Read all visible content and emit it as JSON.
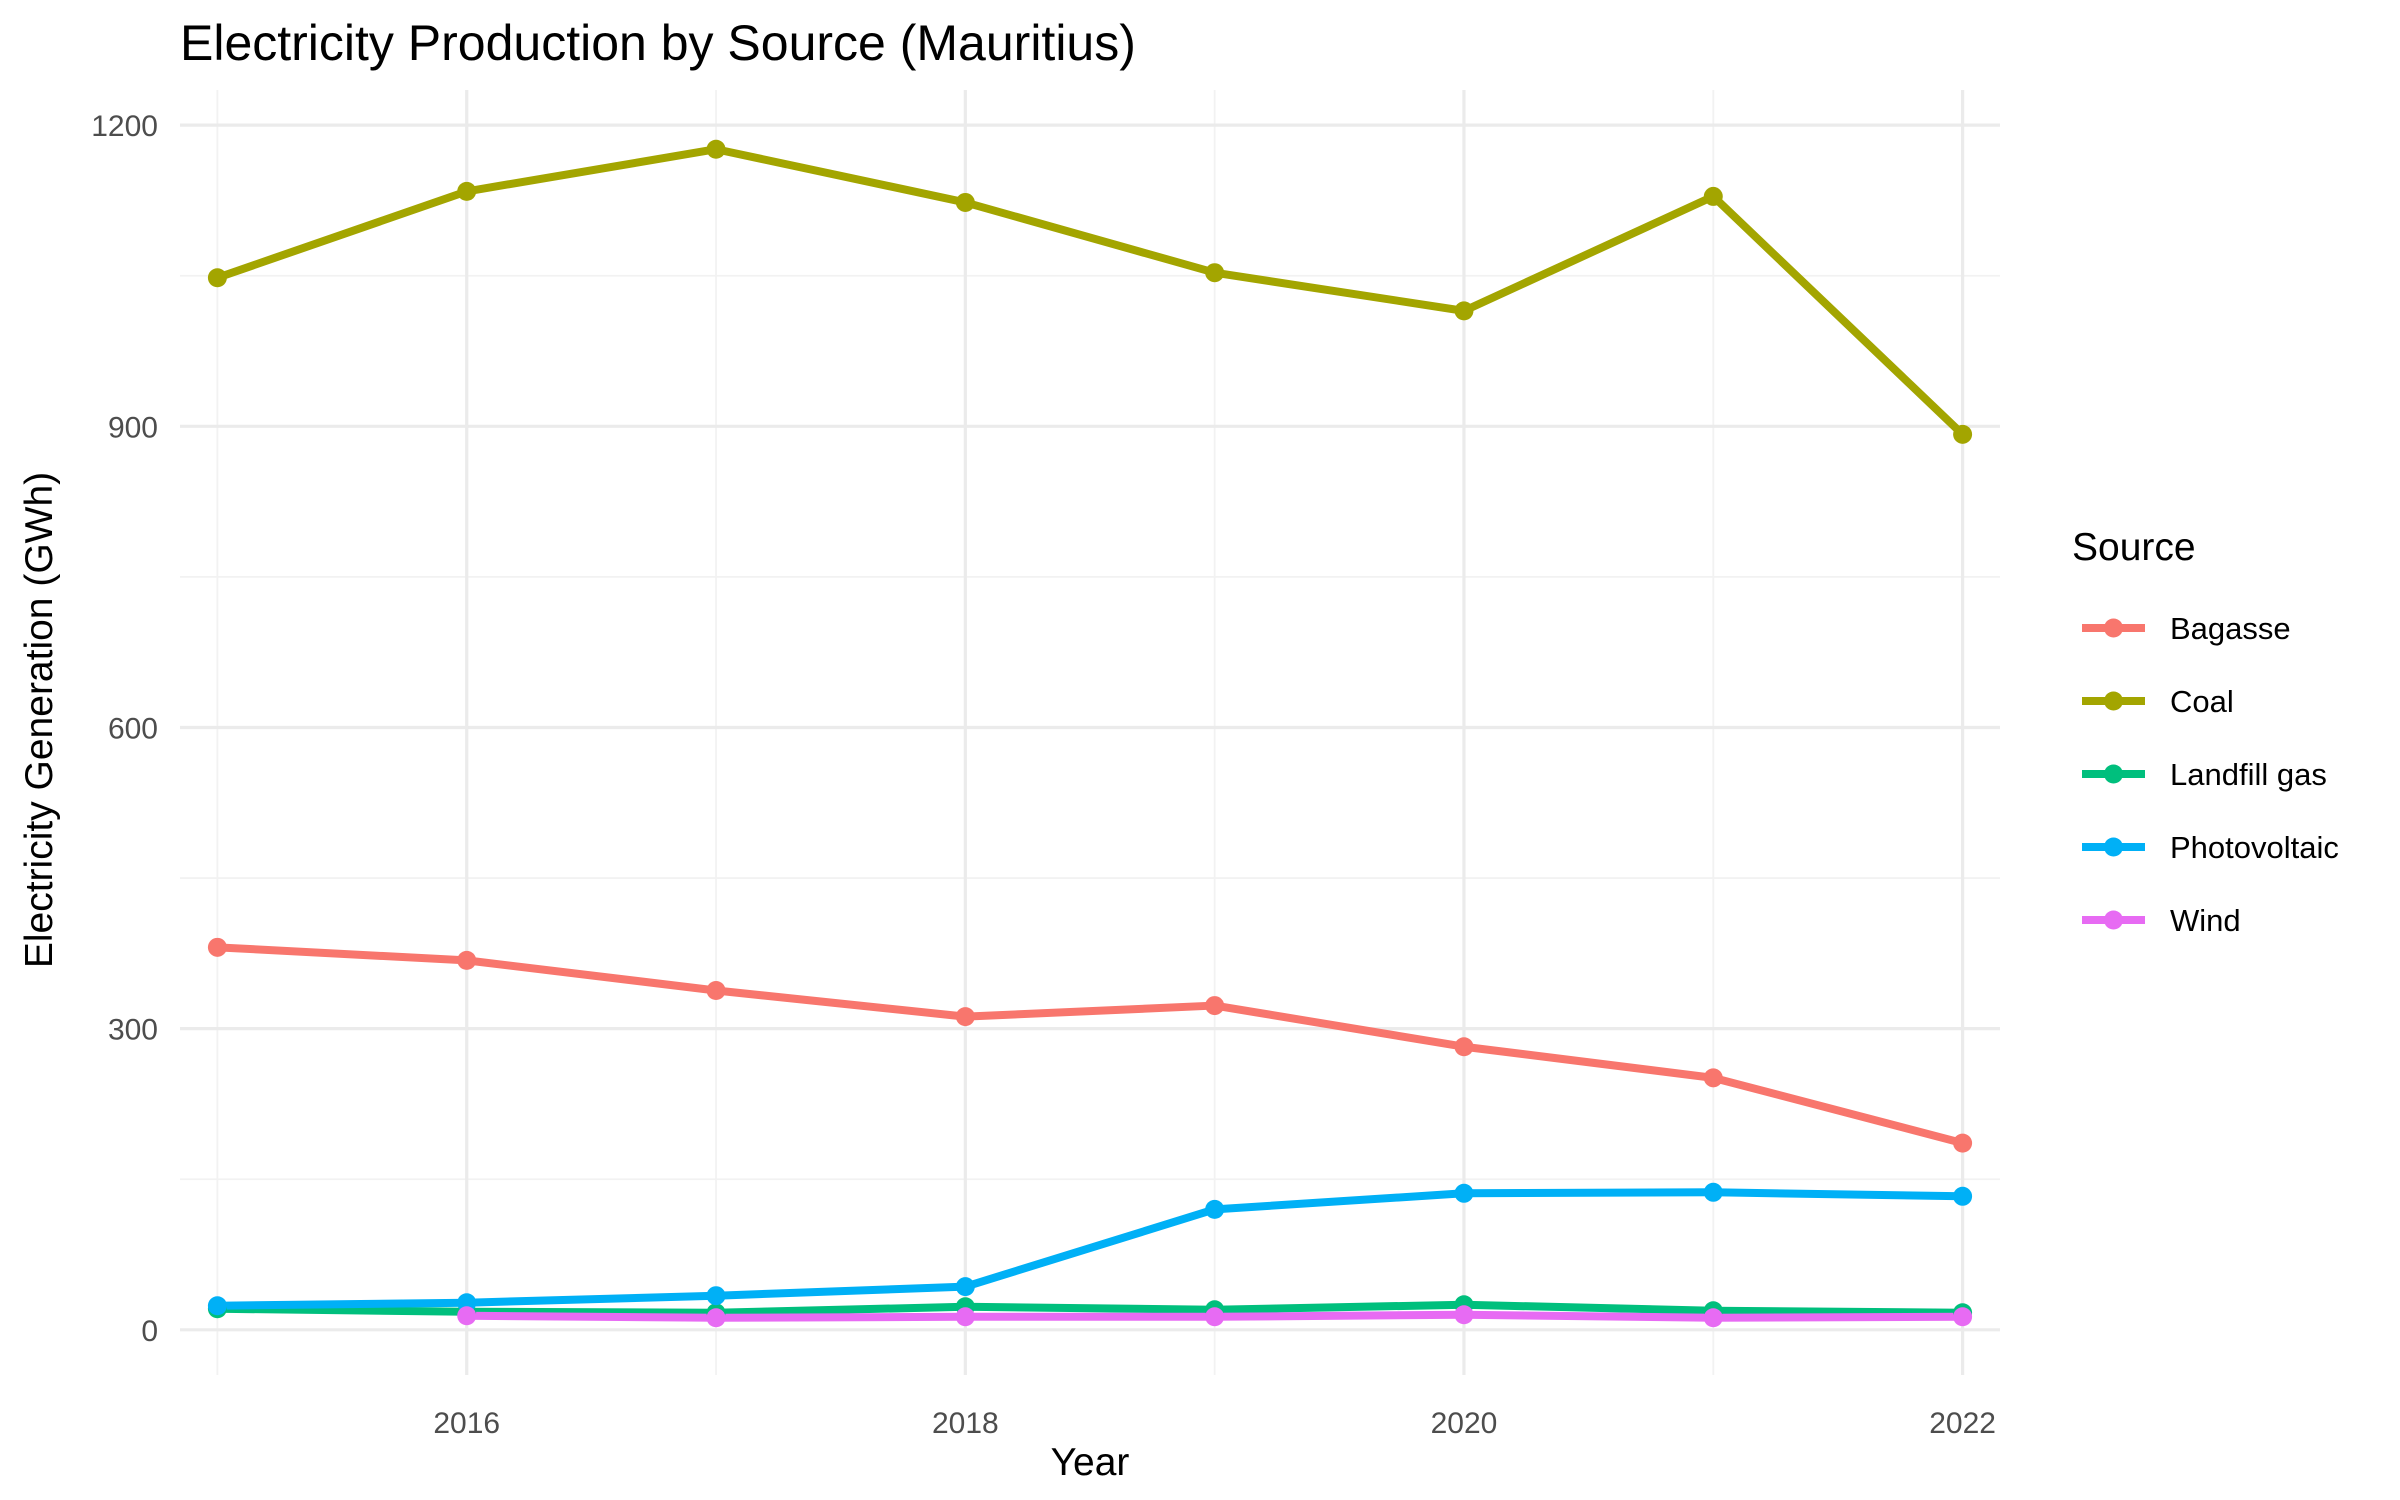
{
  "chart_data": {
    "type": "line",
    "title": "Electricity Production by Source (Mauritius)",
    "xlabel": "Year",
    "ylabel": "Electricity Generation (GWh)",
    "xlim": [
      2014.85,
      2022.15
    ],
    "ylim": [
      -45,
      1235
    ],
    "x_ticks": [
      2016,
      2018,
      2020,
      2022
    ],
    "y_ticks": [
      0,
      300,
      600,
      900,
      1200
    ],
    "x_minor_ticks": [
      2015,
      2017,
      2019,
      2021
    ],
    "y_minor_ticks": [
      150,
      450,
      750,
      1050
    ],
    "grid": true,
    "legend": {
      "title": "Source",
      "position": "right"
    },
    "x": [
      2015,
      2016,
      2017,
      2018,
      2019,
      2020,
      2021,
      2022
    ],
    "series": [
      {
        "name": "Bagasse",
        "color": "#F8766D",
        "values": [
          381,
          368,
          338,
          312,
          323,
          282,
          251,
          186
        ]
      },
      {
        "name": "Coal",
        "color": "#A3A500",
        "values": [
          1048,
          1134,
          1176,
          1123,
          1053,
          1015,
          1129,
          892
        ]
      },
      {
        "name": "Landfill gas",
        "color": "#00BF7D",
        "values": [
          21,
          18,
          17,
          23,
          20,
          25,
          19,
          17
        ]
      },
      {
        "name": "Photovoltaic",
        "color": "#00B0F6",
        "values": [
          24,
          27,
          34,
          43,
          120,
          136,
          137,
          133
        ]
      },
      {
        "name": "Wind",
        "color": "#E76BF3",
        "values": [
          null,
          14,
          12,
          13,
          13,
          15,
          12,
          13
        ]
      }
    ]
  }
}
